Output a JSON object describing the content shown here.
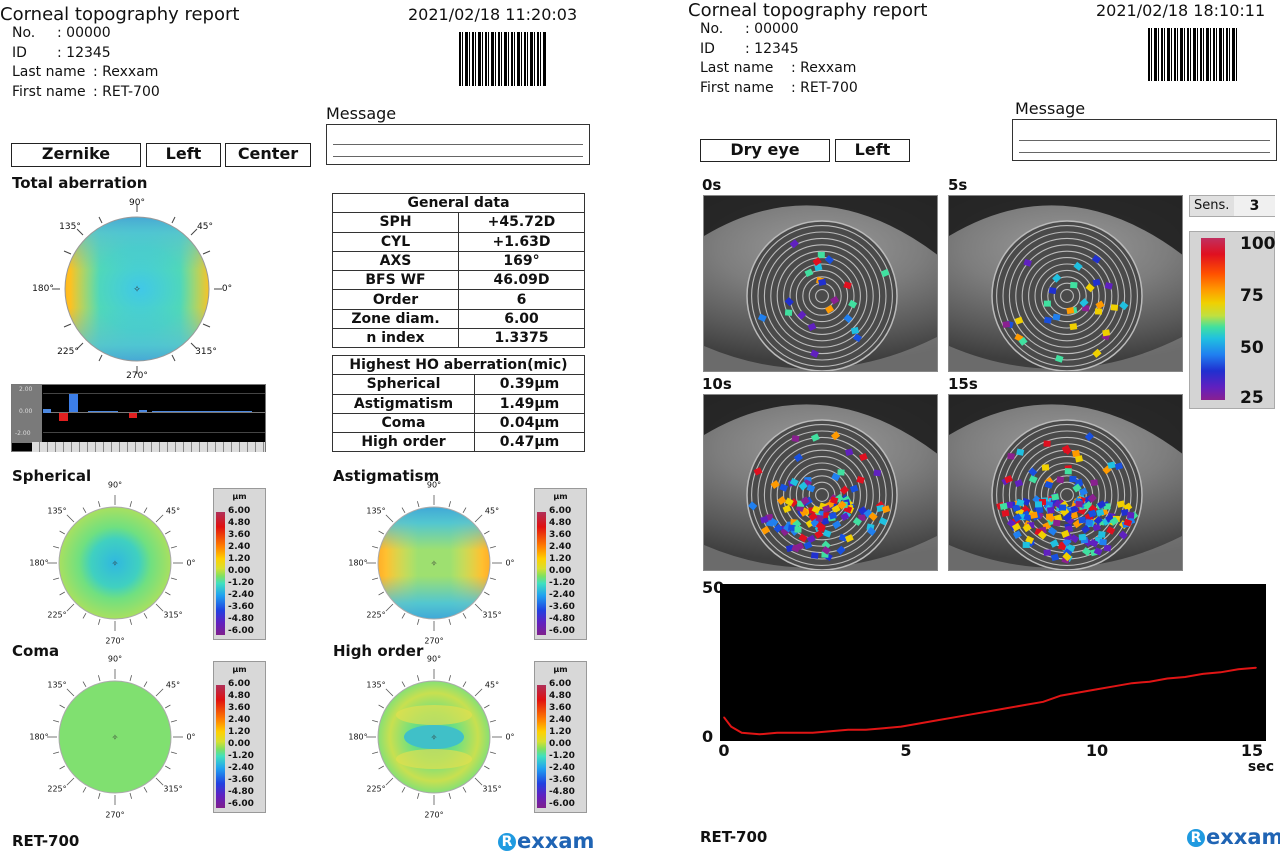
{
  "left_report": {
    "title": "Corneal topography report",
    "datetime": "2021/02/18 11:20:03",
    "patient": {
      "no_label": "No.",
      "no_value": ": 00000",
      "id_label": "ID",
      "id_value": ": 12345",
      "last_label": "Last name",
      "last_value": ": Rexxam",
      "first_label": "First name",
      "first_value": ": RET-700"
    },
    "message_label": "Message",
    "mode_buttons": [
      "Zernike",
      "Left",
      "Center"
    ],
    "total_aberration_title": "Total aberration",
    "bar_axis_labels": [
      "2.00",
      "0.00",
      "-2.00"
    ],
    "general_data": {
      "header": "General data",
      "rows": [
        {
          "label": "SPH",
          "value": "+45.72D"
        },
        {
          "label": "CYL",
          "value": "+1.63D"
        },
        {
          "label": "AXS",
          "value": "169°"
        },
        {
          "label": "BFS WF",
          "value": "46.09D"
        },
        {
          "label": "Order",
          "value": "6"
        },
        {
          "label": "Zone diam.",
          "value": "6.00"
        },
        {
          "label": "n index",
          "value": "1.3375"
        }
      ]
    },
    "ho_data": {
      "header": "Highest HO aberration(mic)",
      "rows": [
        {
          "label": "Spherical",
          "value": "0.39μm"
        },
        {
          "label": "Astigmatism",
          "value": "1.49μm"
        },
        {
          "label": "Coma",
          "value": "0.04μm"
        },
        {
          "label": "High order",
          "value": "0.47μm"
        }
      ]
    },
    "maps": {
      "spherical": "Spherical",
      "astigmatism": "Astigmatism",
      "coma": "Coma",
      "high_order": "High order"
    },
    "angles": [
      "90°",
      "45°",
      "135°",
      "180°",
      "0°",
      "225°",
      "315°",
      "270°"
    ],
    "scale_unit": "μm",
    "scale_ticks": [
      "6.00",
      "4.80",
      "3.60",
      "2.40",
      "1.20",
      "0.00",
      "-1.20",
      "-2.40",
      "-3.60",
      "-4.80",
      "-6.00"
    ],
    "model": "RET-700",
    "logo_text": "exxam",
    "logo_mark": "R"
  },
  "right_report": {
    "title": "Corneal topography report",
    "datetime": "2021/02/18 18:10:11",
    "patient": {
      "no_label": "No.",
      "no_value": ": 00000",
      "id_label": "ID",
      "id_value": ": 12345",
      "last_label": "Last name",
      "last_value": ": Rexxam",
      "first_label": "First name",
      "first_value": ": RET-700"
    },
    "message_label": "Message",
    "mode_buttons": [
      "Dry eye",
      "Left"
    ],
    "frames": [
      "0s",
      "5s",
      "10s",
      "15s"
    ],
    "sens_label": "Sens.",
    "sens_value": "3",
    "color_scale": [
      "100",
      "75",
      "50",
      "25"
    ],
    "model": "RET-700",
    "logo_text": "exxam",
    "logo_mark": "R"
  },
  "chart_data": {
    "type": "line",
    "title": "",
    "xlabel": "sec",
    "ylabel": "",
    "xlim": [
      0,
      15
    ],
    "ylim": [
      0,
      50
    ],
    "x_ticks": [
      "0",
      "5",
      "10",
      "15"
    ],
    "y_ticks": [
      "50",
      "0"
    ],
    "series": [
      {
        "color": "#e01515",
        "x": [
          0,
          0.2,
          0.5,
          1,
          1.5,
          2,
          2.5,
          3,
          3.5,
          4,
          4.5,
          5,
          5.5,
          6,
          6.5,
          7,
          7.5,
          8,
          8.5,
          9,
          9.5,
          10,
          10.5,
          11,
          11.5,
          12,
          12.5,
          13,
          13.5,
          14,
          14.5,
          15
        ],
        "y": [
          7,
          4,
          2,
          1.5,
          2,
          2,
          2,
          2.5,
          3,
          3,
          3.5,
          4,
          5,
          6,
          7,
          8,
          9,
          10,
          11,
          12,
          14,
          15,
          16,
          17,
          18,
          18.5,
          19.5,
          20,
          21,
          21.5,
          22.5,
          23
        ]
      }
    ],
    "grid": false,
    "background": "#000000"
  }
}
